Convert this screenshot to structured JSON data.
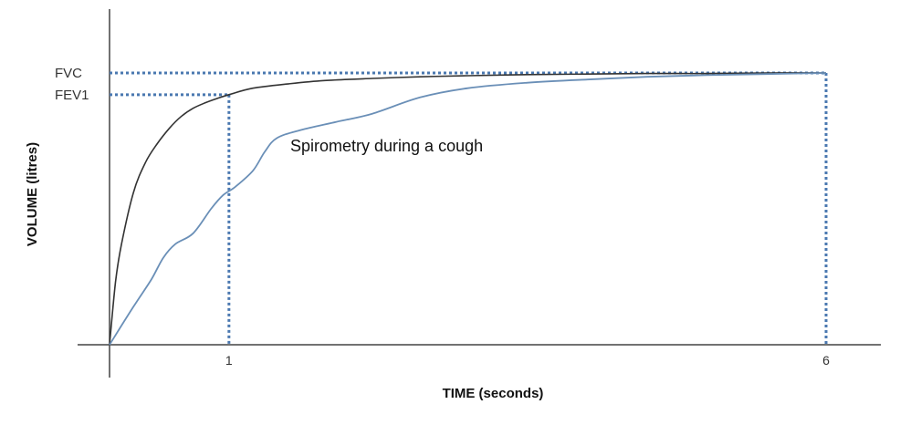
{
  "chart_data": {
    "type": "line",
    "title": "",
    "xlabel": "TIME (seconds)",
    "ylabel": "VOLUME (litres)",
    "xlim": [
      0,
      6.9
    ],
    "ylim": [
      0,
      5.5
    ],
    "xticks": [
      {
        "value": 1,
        "label": "1"
      },
      {
        "value": 6,
        "label": "6"
      }
    ],
    "reference_levels": [
      {
        "label": "FVC",
        "value": 5.0,
        "x_end": 6
      },
      {
        "label": "FEV1",
        "value": 4.6,
        "x_end": 1
      }
    ],
    "series": [
      {
        "color": "#333333",
        "x": [
          0,
          0.05,
          0.1,
          0.2,
          0.3,
          0.4,
          0.5,
          0.6,
          0.7,
          0.8,
          0.9,
          1.0,
          1.2,
          1.5,
          1.8,
          2.2,
          2.6,
          3.0,
          3.5,
          4.0,
          4.5,
          5.0,
          5.5,
          6.0
        ],
        "y": [
          0,
          1.15,
          1.85,
          2.8,
          3.35,
          3.7,
          3.98,
          4.2,
          4.35,
          4.45,
          4.53,
          4.6,
          4.72,
          4.8,
          4.86,
          4.9,
          4.93,
          4.95,
          4.97,
          4.98,
          4.99,
          4.99,
          5.0,
          5.0
        ]
      },
      {
        "color": "#6a8fb7",
        "x": [
          0,
          0.2,
          0.35,
          0.45,
          0.55,
          0.7,
          0.85,
          0.95,
          1.05,
          1.2,
          1.3,
          1.4,
          1.6,
          1.9,
          2.2,
          2.6,
          3.0,
          3.5,
          4.0,
          4.5,
          5.0,
          5.5,
          6.0
        ],
        "y": [
          0,
          0.7,
          1.2,
          1.6,
          1.85,
          2.05,
          2.5,
          2.75,
          2.9,
          3.2,
          3.55,
          3.8,
          3.95,
          4.1,
          4.25,
          4.55,
          4.72,
          4.82,
          4.88,
          4.93,
          4.96,
          4.98,
          5.0
        ]
      }
    ],
    "annotations": [
      {
        "text": "Spirometry during a cough",
        "x": 1.6,
        "y": 3.4
      }
    ],
    "grid": false,
    "legend": "none"
  }
}
